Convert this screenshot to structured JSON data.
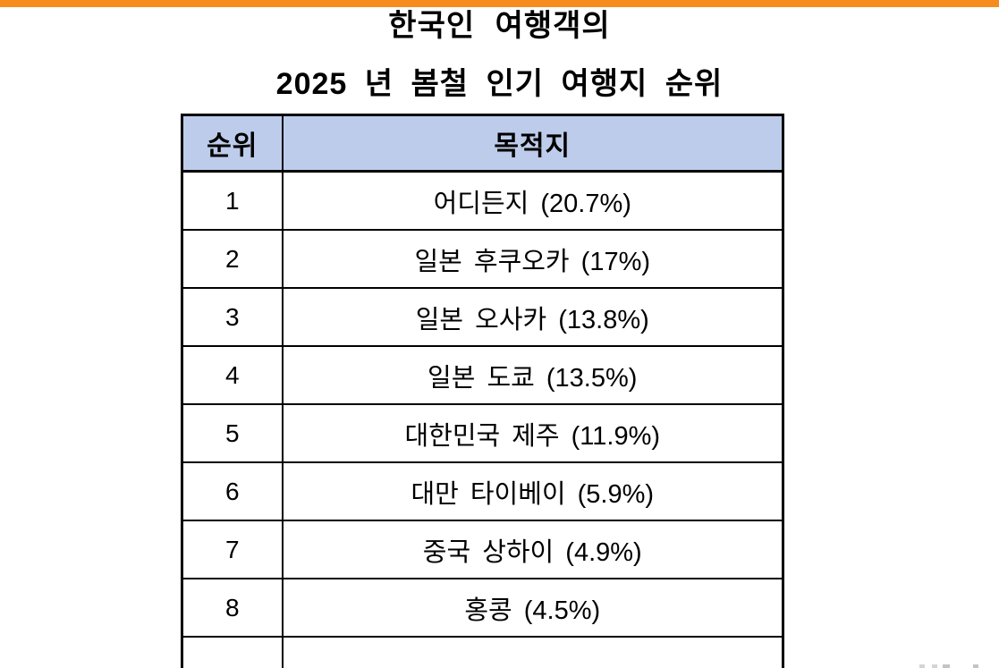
{
  "colors": {
    "accent_bar": "#F78C1E",
    "header_fill": "#BDCCEA",
    "table_border": "#000000",
    "text": "#000000",
    "watermark_gray": "#BDBDBD"
  },
  "title": {
    "line1": "한국인 여행객의",
    "line2": "2025 년 봄철 인기 여행지 순위"
  },
  "table": {
    "header": {
      "rank": "순위",
      "destination": "목적지"
    },
    "rows": [
      {
        "rank": "1",
        "destination": "어디든지 (20.7%)"
      },
      {
        "rank": "2",
        "destination": "일본 후쿠오카 (17%)"
      },
      {
        "rank": "3",
        "destination": "일본 오사카 (13.8%)"
      },
      {
        "rank": "4",
        "destination": "일본 도쿄 (13.5%)"
      },
      {
        "rank": "5",
        "destination": "대한민국 제주 (11.9%)"
      },
      {
        "rank": "6",
        "destination": "대만 타이베이 (5.9%)"
      },
      {
        "rank": "7",
        "destination": "중국 상하이 (4.9%)"
      },
      {
        "rank": "8",
        "destination": "홍콩 (4.5%)"
      },
      {
        "rank": "",
        "destination": ""
      }
    ]
  },
  "chart_data": {
    "type": "table",
    "title": "한국인 여행객의 2025 년 봄철 인기 여행지 순위",
    "columns": [
      "순위",
      "목적지"
    ],
    "categories": [
      "어디든지",
      "일본 후쿠오카",
      "일본 오사카",
      "일본 도쿄",
      "대한민국 제주",
      "대만 타이베이",
      "중국 상하이",
      "홍콩"
    ],
    "values": [
      20.7,
      17,
      13.8,
      13.5,
      11.9,
      5.9,
      4.9,
      4.5
    ],
    "unit": "%",
    "notes": "Ninth table row is cut off at the bottom edge of the image; only its top border is visible. Faint gray watermark fragment cut off at bottom-right corner."
  }
}
